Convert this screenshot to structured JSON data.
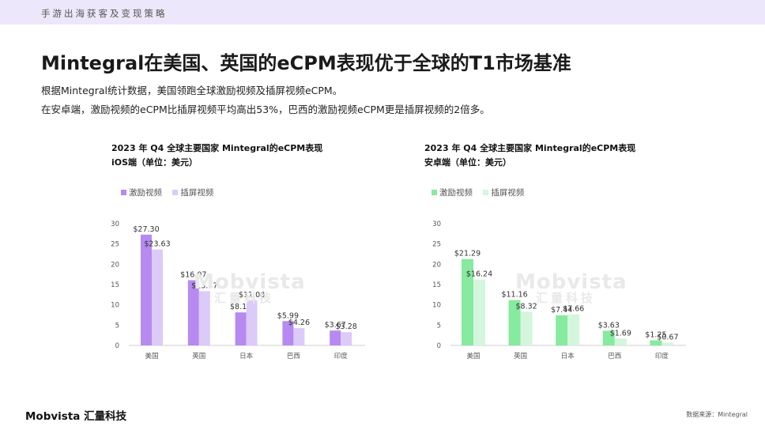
{
  "header": {
    "tagline": "手游出海获客及变现策略"
  },
  "page": {
    "title": "Mintegral在美国、英国的eCPM表现优于全球的T1市场基准",
    "desc1": "根据Mintegral统计数据，美国领跑全球激励视频及插屏视频eCPM。",
    "desc2": "在安卓端，激励视频的eCPM比插屏视频平均高出53%，巴西的激励视频eCPM更是插屏视频的2倍多。"
  },
  "watermark": {
    "brand": "Mobvista",
    "cn": "汇量科技"
  },
  "footer": {
    "logo": "Mobvista",
    "logo_cn": "汇量科技",
    "source": "数据来源：Mintegral"
  },
  "colors": {
    "ios_rewarded": "#b68af0",
    "ios_interstitial": "#dccaf9",
    "android_rewarded": "#86ea9f",
    "android_interstitial": "#d3f6dc",
    "topbar": "#ece7fb"
  },
  "chart_data": [
    {
      "type": "bar",
      "title": "2023 年 Q4 全球主要国家 Mintegral的eCPM表现",
      "subtitle": "iOS端（单位：美元）",
      "categories": [
        "美国",
        "英国",
        "日本",
        "巴西",
        "印度"
      ],
      "series": [
        {
          "name": "激励视频",
          "values": [
            27.3,
            16.07,
            8.14,
            5.99,
            3.67
          ],
          "labels": [
            "$27.30",
            "$16.07",
            "$8.14",
            "$5.99",
            "$3.67"
          ]
        },
        {
          "name": "插屏视频",
          "values": [
            23.63,
            13.37,
            11.08,
            4.26,
            3.28
          ],
          "labels": [
            "$23.63",
            "$13.37",
            "$11.08",
            "$4.26",
            "$3.28"
          ]
        }
      ],
      "yticks": [
        "0",
        "5",
        "10",
        "15",
        "20",
        "25",
        "30"
      ],
      "ylim": [
        0,
        30
      ],
      "grid": false,
      "legend": "top-left"
    },
    {
      "type": "bar",
      "title": "2023 年 Q4 全球主要国家 Mintegral的eCPM表现",
      "subtitle": "安卓端（单位：美元）",
      "categories": [
        "美国",
        "英国",
        "日本",
        "巴西",
        "印度"
      ],
      "series": [
        {
          "name": "激励视频",
          "values": [
            21.29,
            11.16,
            7.44,
            3.63,
            1.25
          ],
          "labels": [
            "$21.29",
            "$11.16",
            "$7.44",
            "$3.63",
            "$1.25"
          ]
        },
        {
          "name": "插屏视频",
          "values": [
            16.24,
            8.32,
            7.66,
            1.69,
            0.67
          ],
          "labels": [
            "$16.24",
            "$8.32",
            "$7.66",
            "$1.69",
            "$0.67"
          ]
        }
      ],
      "yticks": [
        "0",
        "5",
        "10",
        "15",
        "20",
        "25",
        "30"
      ],
      "ylim": [
        0,
        30
      ],
      "grid": false,
      "legend": "top-left"
    }
  ]
}
